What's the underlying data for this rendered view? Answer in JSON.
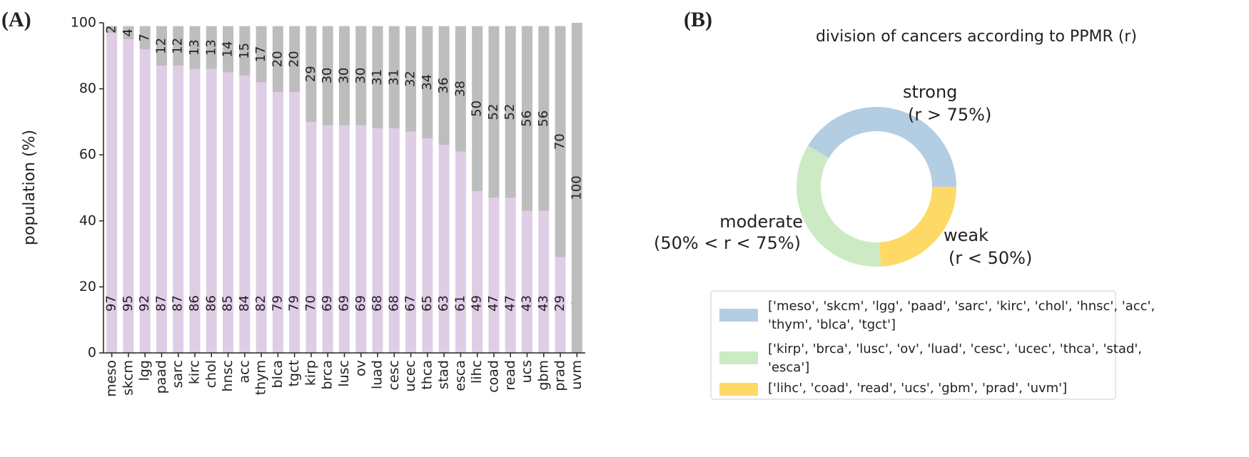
{
  "chart_data": [
    {
      "type": "bar",
      "stacked": true,
      "panel_label": "(A)",
      "ylabel": "population (%)",
      "categories": [
        "meso",
        "skcm",
        "lgg",
        "paad",
        "sarc",
        "kirc",
        "chol",
        "hnsc",
        "acc",
        "thym",
        "blca",
        "tgct",
        "kirp",
        "brca",
        "lusc",
        "ov",
        "luad",
        "cesc",
        "ucec",
        "thca",
        "stad",
        "esca",
        "lihc",
        "coad",
        "read",
        "ucs",
        "gbm",
        "prad",
        "uvm"
      ],
      "series": [
        {
          "color": "#dfcde6",
          "values": [
            97,
            95,
            92,
            87,
            87,
            86,
            86,
            85,
            84,
            82,
            79,
            79,
            70,
            69,
            69,
            69,
            68,
            68,
            67,
            65,
            63,
            61,
            49,
            47,
            47,
            43,
            43,
            29,
            0
          ]
        },
        {
          "color": "#bdbdbd",
          "values": [
            2,
            4,
            7,
            12,
            12,
            13,
            13,
            14,
            15,
            17,
            20,
            20,
            29,
            30,
            30,
            30,
            31,
            31,
            32,
            34,
            36,
            38,
            50,
            52,
            52,
            56,
            56,
            70,
            100
          ]
        }
      ],
      "ylim": [
        0,
        100
      ],
      "yticks": [
        0,
        20,
        40,
        60,
        80,
        100
      ]
    },
    {
      "type": "pie",
      "donut": true,
      "panel_label": "(B)",
      "title": "division of cancers according to PPMR (r)",
      "categories": [
        "strong",
        "moderate",
        "weak"
      ],
      "sublabels": [
        "(r > 75%)",
        "(50% < r < 75%)",
        "(r < 50%)"
      ],
      "values": [
        12,
        10,
        7
      ],
      "colors": [
        "#b3cde3",
        "#ccebc5",
        "#fed966"
      ],
      "legend": [
        [
          "['meso', 'skcm', 'lgg', 'paad', 'sarc', 'kirc', 'chol', 'hnsc', 'acc',",
          "'thym', 'blca', 'tgct']"
        ],
        [
          "['kirp', 'brca', 'lusc', 'ov', 'luad', 'cesc', 'ucec', 'thca', 'stad',",
          "'esca']"
        ],
        [
          "['lihc', 'coad', 'read', 'ucs', 'gbm', 'prad', 'uvm']"
        ]
      ]
    }
  ]
}
